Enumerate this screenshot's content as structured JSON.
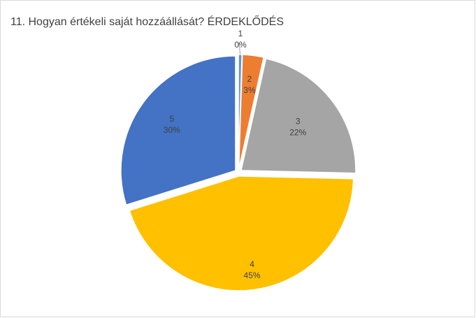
{
  "chart_data": {
    "type": "pie",
    "title": "11. Hogyan értékeli saját hozzáállását? ÉRDEKLŐDÉS",
    "categories": [
      "1",
      "2",
      "3",
      "4",
      "5"
    ],
    "values": [
      0.5,
      3,
      22,
      45,
      30
    ],
    "value_labels": [
      "0%",
      "3%",
      "22%",
      "45%",
      "30%"
    ],
    "colors": [
      "#5b9bd5",
      "#ed7d31",
      "#a5a5a5",
      "#ffc000",
      "#4472c4"
    ],
    "exploded": true,
    "legend": "none"
  }
}
